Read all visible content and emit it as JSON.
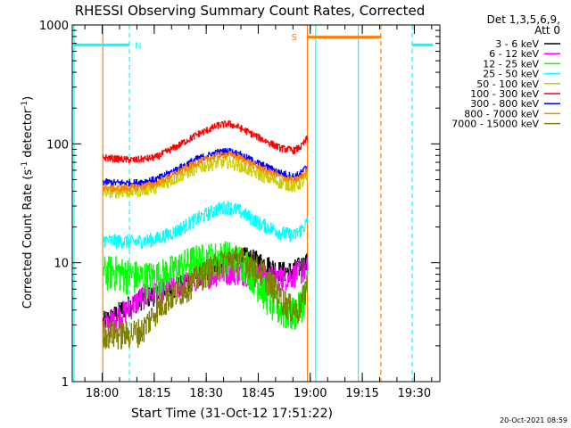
{
  "chart_data": {
    "type": "line",
    "title": "RHESSI Observing Summary Count Rates, Corrected",
    "xlabel": "Start Time (31-Oct-12 17:51:22)",
    "ylabel": "Corrected Count Rate (s",
    "ylabel_sup": "-1",
    "ylabel_mid": " detector",
    "ylabel_end": ")",
    "yscale": "log",
    "ylim": [
      1,
      1000
    ],
    "xlim_min": [
      0,
      106
    ],
    "x_tick_min": [
      8.633,
      23.633,
      38.633,
      53.633,
      68.633,
      83.633,
      98.633
    ],
    "x_tick_labels": [
      "18:00",
      "18:15",
      "18:30",
      "18:45",
      "19:00",
      "19:15",
      "19:30"
    ],
    "y_tick_values": [
      1,
      10,
      100,
      1000
    ],
    "y_tick_labels": [
      "1",
      "10",
      "100",
      "1000"
    ],
    "legend_header": [
      "Det 1,3,5,6,9,",
      "Att 0"
    ],
    "footer_date": "20-Oct-2021 08:59",
    "data_window_min": [
      8.8,
      67.8
    ],
    "series": [
      {
        "name": "3 - 6 keV",
        "color": "#000000",
        "anchors": [
          [
            8.8,
            3.2
          ],
          [
            12,
            3.6
          ],
          [
            15,
            4.2
          ],
          [
            20,
            5.0
          ],
          [
            25,
            5.6
          ],
          [
            30,
            6.2
          ],
          [
            35,
            7.5
          ],
          [
            40,
            9.0
          ],
          [
            45,
            10.5
          ],
          [
            50,
            11.2
          ],
          [
            55,
            10.0
          ],
          [
            60,
            8.5
          ],
          [
            63,
            8.5
          ],
          [
            66,
            9.5
          ],
          [
            67.8,
            10.0
          ]
        ],
        "noise": 0.12
      },
      {
        "name": "6 - 12 keV",
        "color": "#ff00ff",
        "anchors": [
          [
            8.8,
            3.0
          ],
          [
            12,
            3.4
          ],
          [
            15,
            3.9
          ],
          [
            18,
            4.6
          ],
          [
            20,
            5.2
          ],
          [
            25,
            5.8
          ],
          [
            30,
            6.4
          ],
          [
            35,
            7.2
          ],
          [
            40,
            8.0
          ],
          [
            45,
            8.5
          ],
          [
            50,
            8.3
          ],
          [
            55,
            7.8
          ],
          [
            60,
            7.5
          ],
          [
            63,
            7.8
          ],
          [
            66,
            8.5
          ],
          [
            67.8,
            9.0
          ]
        ],
        "noise": 0.14
      },
      {
        "name": "12 - 25 keV",
        "color": "#00ff00",
        "anchors": [
          [
            8.8,
            8.5
          ],
          [
            12,
            8.6
          ],
          [
            15,
            8.2
          ],
          [
            20,
            7.6
          ],
          [
            25,
            7.8
          ],
          [
            30,
            9.0
          ],
          [
            35,
            10.5
          ],
          [
            40,
            11.0
          ],
          [
            45,
            11.5
          ],
          [
            50,
            10.0
          ],
          [
            55,
            6.0
          ],
          [
            58,
            4.5
          ],
          [
            62,
            3.8
          ],
          [
            65,
            4.0
          ],
          [
            67,
            5.5
          ],
          [
            67.8,
            7.0
          ]
        ],
        "noise": 0.2
      },
      {
        "name": "25 - 50 keV",
        "color": "#00ffff",
        "anchors": [
          [
            8.8,
            15.5
          ],
          [
            12,
            15.3
          ],
          [
            18,
            15.0
          ],
          [
            24,
            15.8
          ],
          [
            30,
            18.5
          ],
          [
            36,
            23.5
          ],
          [
            42,
            28.5
          ],
          [
            45,
            29.5
          ],
          [
            48,
            27.5
          ],
          [
            54,
            21.5
          ],
          [
            60,
            18.0
          ],
          [
            64,
            17.0
          ],
          [
            66,
            19.0
          ],
          [
            67.8,
            22.0
          ]
        ],
        "noise": 0.08
      },
      {
        "name": "50 - 100 keV",
        "color": "#cccc00",
        "anchors": [
          [
            8.8,
            40
          ],
          [
            12,
            39.5
          ],
          [
            18,
            40
          ],
          [
            24,
            43
          ],
          [
            30,
            52
          ],
          [
            36,
            63
          ],
          [
            42,
            70
          ],
          [
            45,
            70
          ],
          [
            48,
            66
          ],
          [
            54,
            55
          ],
          [
            60,
            47
          ],
          [
            64,
            44
          ],
          [
            66,
            47
          ],
          [
            67.8,
            52
          ]
        ],
        "noise": 0.07
      },
      {
        "name": "100 - 300 keV",
        "color": "#ff0000",
        "anchors": [
          [
            8.8,
            77
          ],
          [
            12,
            75
          ],
          [
            18,
            73
          ],
          [
            24,
            77
          ],
          [
            30,
            95
          ],
          [
            36,
            120
          ],
          [
            42,
            143
          ],
          [
            45,
            148
          ],
          [
            48,
            138
          ],
          [
            54,
            112
          ],
          [
            60,
            92
          ],
          [
            64,
            88
          ],
          [
            66,
            95
          ],
          [
            67.8,
            112
          ]
        ],
        "noise": 0.04
      },
      {
        "name": "300 - 800 keV",
        "color": "#0000ff",
        "anchors": [
          [
            8.8,
            48
          ],
          [
            12,
            47
          ],
          [
            18,
            47
          ],
          [
            24,
            50
          ],
          [
            30,
            61
          ],
          [
            36,
            75
          ],
          [
            42,
            85
          ],
          [
            45,
            87
          ],
          [
            48,
            82
          ],
          [
            54,
            68
          ],
          [
            60,
            57
          ],
          [
            64,
            53
          ],
          [
            66,
            57
          ],
          [
            67.8,
            65
          ]
        ],
        "noise": 0.04
      },
      {
        "name": "800 - 7000 keV",
        "color": "#ff8000",
        "anchors": [
          [
            8.8,
            43
          ],
          [
            12,
            42
          ],
          [
            18,
            43
          ],
          [
            24,
            46
          ],
          [
            30,
            57
          ],
          [
            36,
            70
          ],
          [
            42,
            80
          ],
          [
            45,
            82
          ],
          [
            48,
            77
          ],
          [
            54,
            63
          ],
          [
            60,
            53
          ],
          [
            64,
            49
          ],
          [
            66,
            53
          ],
          [
            67.8,
            60
          ]
        ],
        "noise": 0.04
      },
      {
        "name": "7000 - 15000 keV",
        "color": "#808000",
        "anchors": [
          [
            8.8,
            2.6
          ],
          [
            14,
            2.5
          ],
          [
            20,
            2.7
          ],
          [
            24,
            4.0
          ],
          [
            28,
            5.2
          ],
          [
            32,
            6.0
          ],
          [
            36,
            7.5
          ],
          [
            40,
            9.0
          ],
          [
            44,
            10.5
          ],
          [
            48,
            11.0
          ],
          [
            52,
            9.5
          ],
          [
            56,
            7.5
          ],
          [
            60,
            5.2
          ],
          [
            63,
            4.2
          ],
          [
            65,
            4.0
          ],
          [
            67,
            5.5
          ],
          [
            67.8,
            7.0
          ]
        ],
        "noise": 0.16
      }
    ],
    "flag_bars": [
      {
        "label": "",
        "color": "#00ffff",
        "y": 680,
        "x_min": [
          0.5,
          16.5
        ]
      },
      {
        "label": "",
        "color": "#00ffff",
        "y": 680,
        "x_min": [
          98,
          104
        ]
      },
      {
        "label": "",
        "color": "#ff8000",
        "y": 790,
        "x_min": [
          67.8,
          89
        ]
      }
    ],
    "flag_labels": [
      {
        "text": "N",
        "color": "#00ffff",
        "x_min": 19,
        "y": 680
      },
      {
        "text": "S",
        "color": "#ff8000",
        "x_min": 64,
        "y": 800
      }
    ],
    "vlines": [
      {
        "color": "#00ffff",
        "style": "solid",
        "x_min": 0.5
      },
      {
        "color": "#00ffff",
        "style": "dashed",
        "x_min": 16.5
      },
      {
        "color": "#ff8000",
        "style": "solid",
        "x_min": 8.8
      },
      {
        "color": "#ff8000",
        "style": "solid",
        "x_min": 67.8
      },
      {
        "color": "#00ffff",
        "style": "solid",
        "x_min": 70.2
      },
      {
        "color": "#00ffff",
        "style": "solid",
        "x_min": 82.5
      },
      {
        "color": "#ff8000",
        "style": "dashed",
        "x_min": 89
      },
      {
        "color": "#00ffff",
        "style": "dashed",
        "x_min": 98
      }
    ]
  }
}
